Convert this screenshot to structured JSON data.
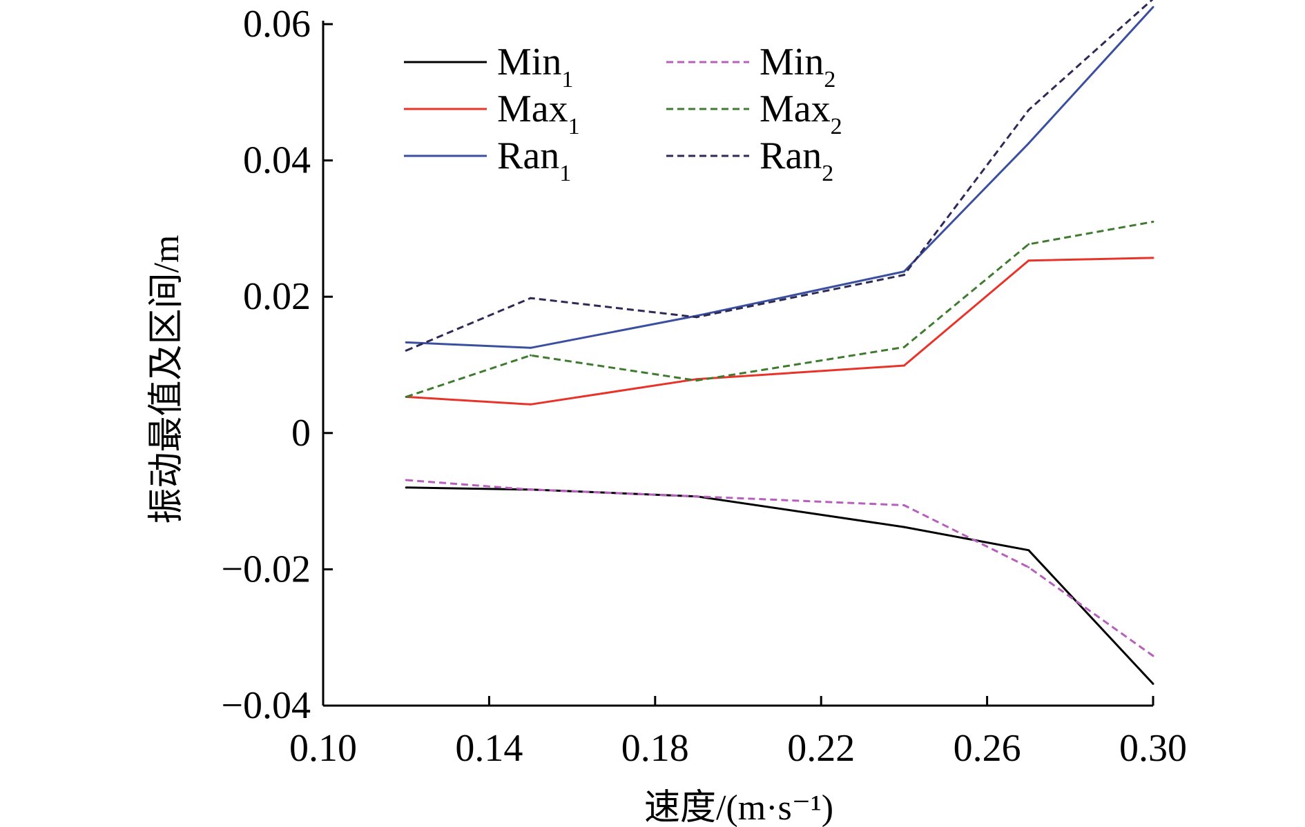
{
  "chart_data": {
    "type": "line",
    "title": "",
    "xlabel": "速度/(m·s⁻¹)",
    "ylabel": "振动最值及区间/m",
    "xlim": [
      0.1,
      0.3
    ],
    "ylim": [
      -0.04,
      0.06
    ],
    "x_ticks": [
      "0.10",
      "0.14",
      "0.18",
      "0.22",
      "0.26",
      "0.30"
    ],
    "y_ticks": [
      "0.06",
      "0.04",
      "0.02",
      "0",
      "−0.02",
      "−0.04"
    ],
    "x_tick_values": [
      0.1,
      0.14,
      0.18,
      0.22,
      0.26,
      0.3
    ],
    "y_tick_values": [
      0.06,
      0.04,
      0.02,
      0,
      -0.02,
      -0.04
    ],
    "x": [
      0.12,
      0.15,
      0.19,
      0.24,
      0.27,
      0.3
    ],
    "legend_position": "top-left",
    "series": [
      {
        "name": "Min",
        "sub": "1",
        "color": "#000000",
        "dash": "none",
        "values": [
          -0.008,
          -0.0083,
          -0.0093,
          -0.0138,
          -0.0172,
          -0.0368
        ]
      },
      {
        "name": "Max",
        "sub": "1",
        "color": "#e8332a",
        "dash": "none",
        "values": [
          0.0053,
          0.0042,
          0.0079,
          0.0099,
          0.0253,
          0.0257
        ]
      },
      {
        "name": "Ran",
        "sub": "1",
        "color": "#3a4fa0",
        "dash": "none",
        "values": [
          0.0133,
          0.0125,
          0.0172,
          0.0237,
          0.0425,
          0.0625
        ]
      },
      {
        "name": "Min",
        "sub": "2",
        "color": "#b65fbf",
        "dash": "10,6",
        "values": [
          -0.0069,
          -0.0083,
          -0.0093,
          -0.0106,
          -0.0197,
          -0.0327
        ]
      },
      {
        "name": "Max",
        "sub": "2",
        "color": "#3f7b2f",
        "dash": "10,6",
        "values": [
          0.0053,
          0.0114,
          0.0077,
          0.0126,
          0.0277,
          0.031
        ]
      },
      {
        "name": "Ran",
        "sub": "2",
        "color": "#2e2a58",
        "dash": "10,6",
        "values": [
          0.0121,
          0.0198,
          0.017,
          0.0232,
          0.0474,
          0.0637
        ]
      }
    ]
  }
}
